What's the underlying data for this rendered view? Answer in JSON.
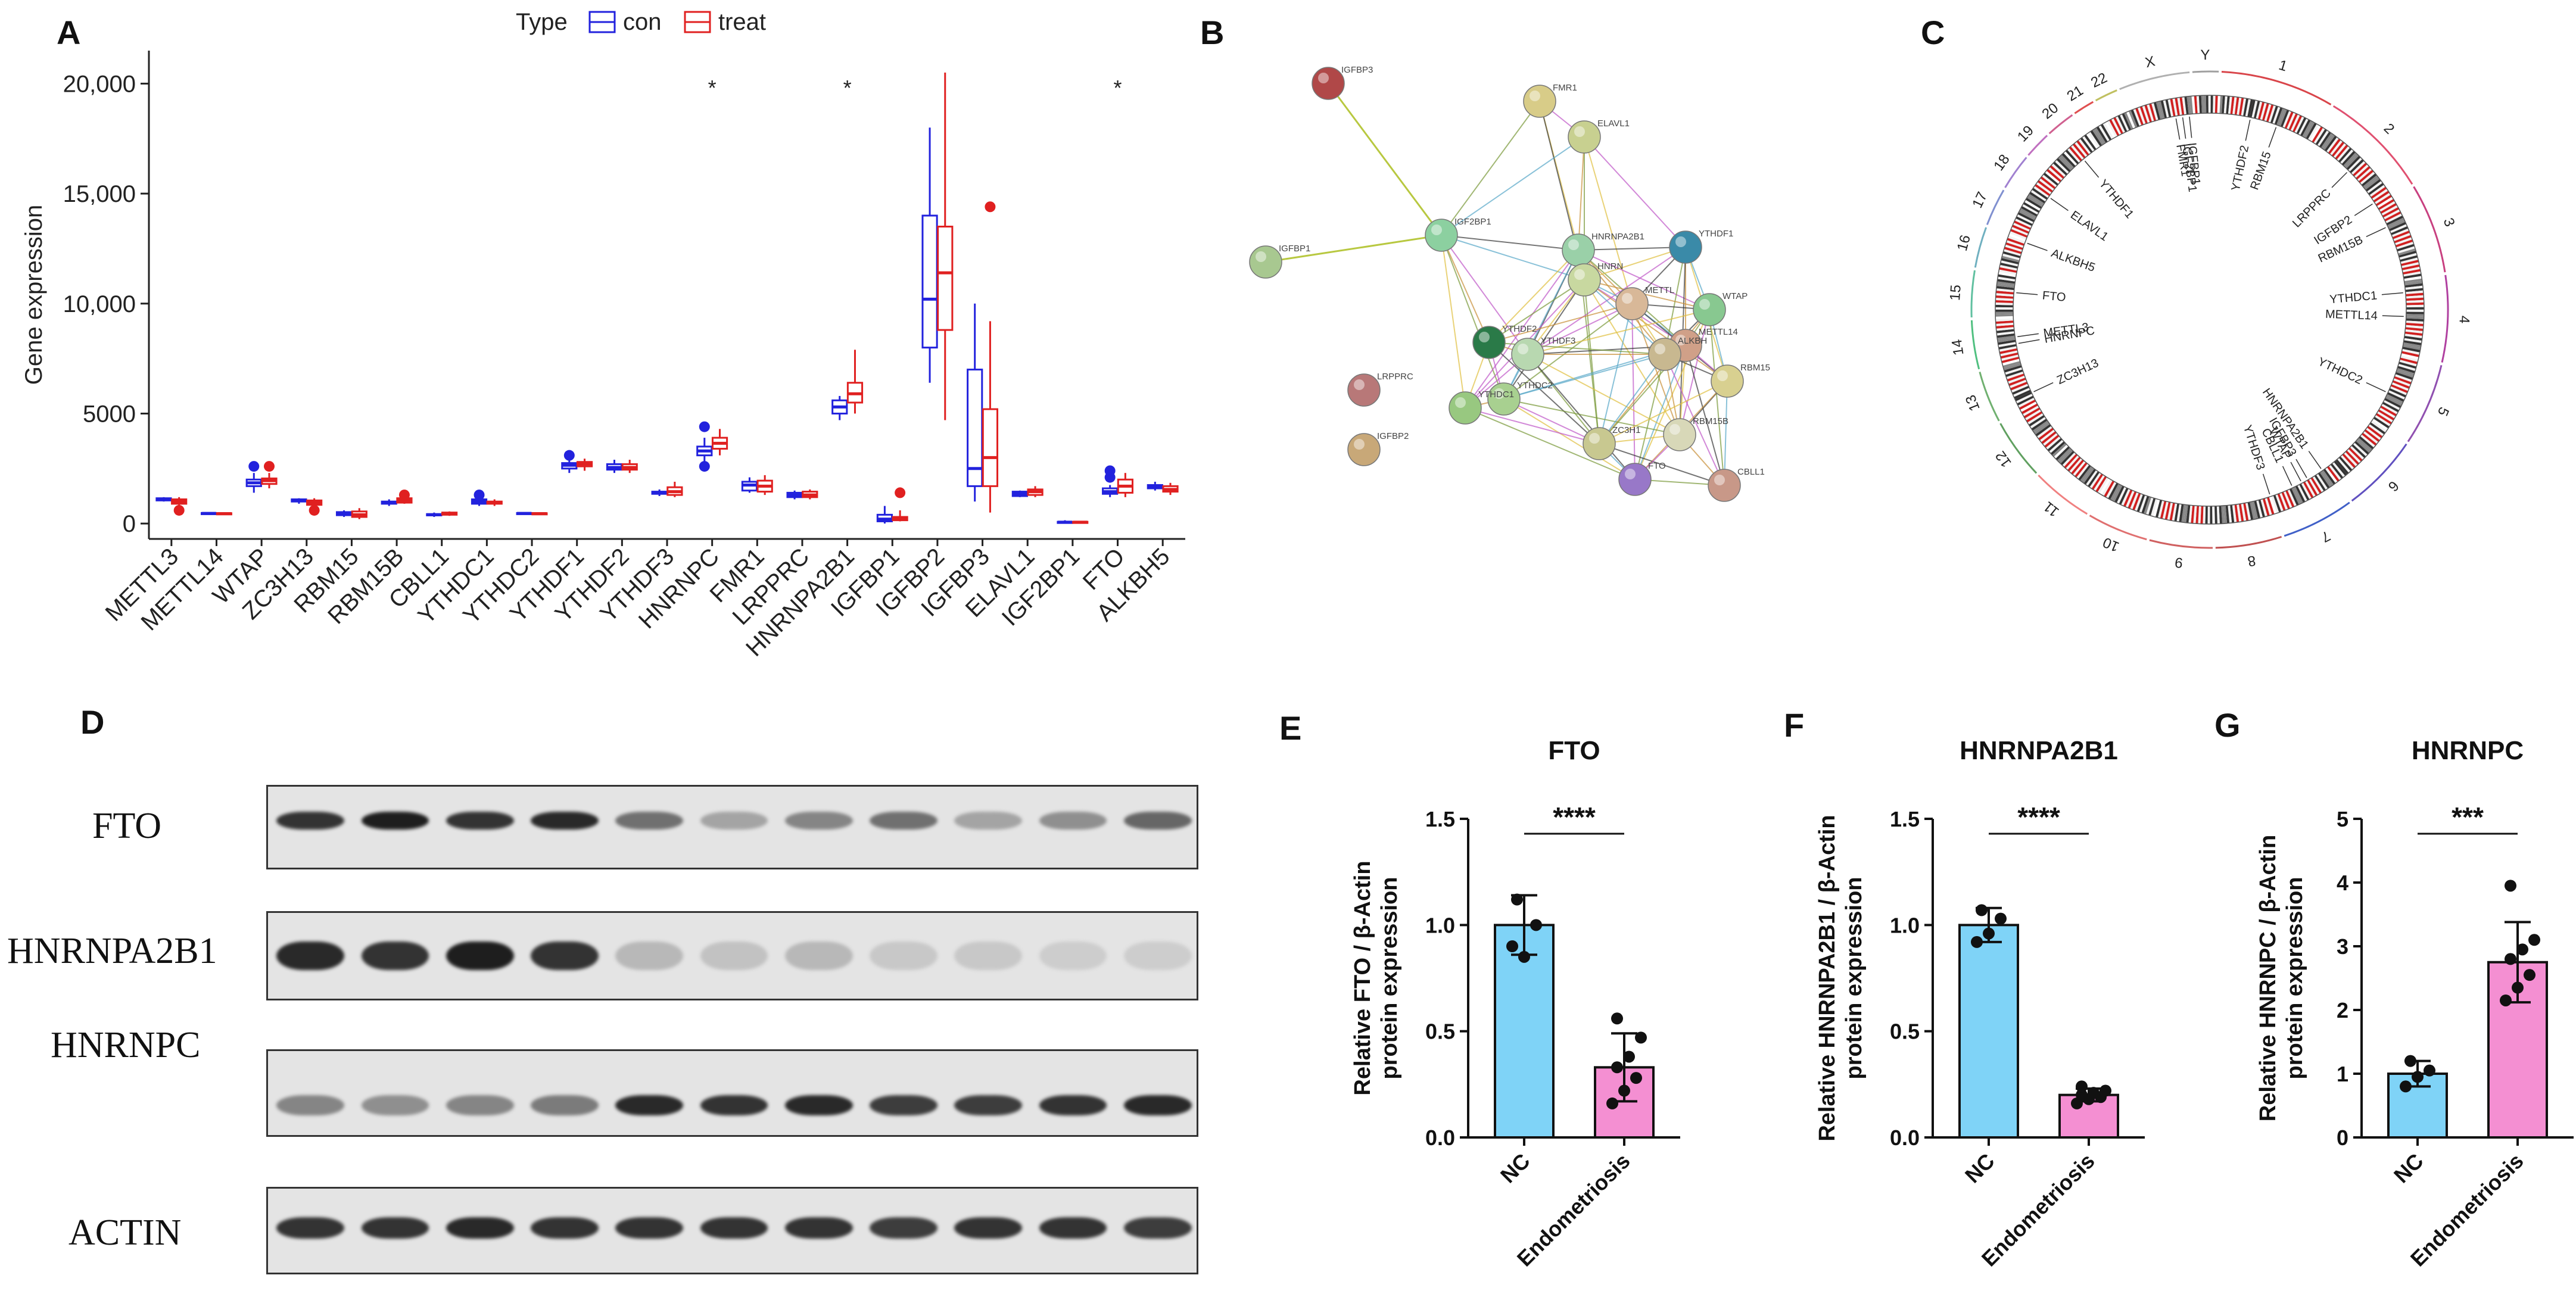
{
  "panel_labels": {
    "a": "A",
    "b": "B",
    "c": "C",
    "d": "D",
    "e": "E",
    "f": "F",
    "g": "G"
  },
  "colors": {
    "con": "#2222dd",
    "treat": "#e02020",
    "nc_bar": "#7fd3f7",
    "endo_bar": "#f48fd2"
  },
  "chart_data": [
    {
      "id": "A",
      "type": "boxplot",
      "legend": {
        "title": "Type",
        "entries": [
          "con",
          "treat"
        ],
        "placement": "top"
      },
      "ylabel": "Gene expression",
      "xlabel": "",
      "ylim": [
        -700,
        21500
      ],
      "yticks": [
        0,
        5000,
        10000,
        15000,
        20000
      ],
      "ytick_labels": [
        "0",
        "5000",
        "10,000",
        "15,000",
        "20,000"
      ],
      "categories": [
        "METTL3",
        "METTL14",
        "WTAP",
        "ZC3H13",
        "RBM15",
        "RBM15B",
        "CBLL1",
        "YTHDC1",
        "YTHDC2",
        "YTHDF1",
        "YTHDF2",
        "YTHDF3",
        "HNRNPC",
        "FMR1",
        "LRPPRC",
        "HNRNPA2B1",
        "IGFBP1",
        "IGFBP2",
        "IGFBP3",
        "ELAVL1",
        "IGF2BP1",
        "FTO",
        "ALKBH5"
      ],
      "significance": [
        {
          "category": "HNRNPC",
          "label": "*"
        },
        {
          "category": "HNRNPA2B1",
          "label": "*"
        },
        {
          "category": "FTO",
          "label": "*"
        }
      ],
      "series": [
        {
          "name": "con",
          "boxes": [
            [
              1000,
              1050,
              1100,
              1150,
              1200
            ],
            [
              420,
              440,
              460,
              480,
              500
            ],
            [
              1400,
              1700,
              1850,
              2000,
              2300
            ],
            [
              900,
              1000,
              1050,
              1100,
              1150
            ],
            [
              300,
              380,
              450,
              520,
              600
            ],
            [
              800,
              900,
              950,
              1000,
              1100
            ],
            [
              300,
              370,
              400,
              430,
              500
            ],
            [
              800,
              900,
              1000,
              1100,
              1250
            ],
            [
              420,
              440,
              460,
              480,
              500
            ],
            [
              2300,
              2500,
              2650,
              2750,
              2900
            ],
            [
              2300,
              2450,
              2550,
              2700,
              2900
            ],
            [
              1250,
              1350,
              1400,
              1450,
              1550
            ],
            [
              2800,
              3100,
              3300,
              3500,
              3900
            ],
            [
              1400,
              1500,
              1750,
              1900,
              2100
            ],
            [
              1100,
              1200,
              1300,
              1400,
              1500
            ],
            [
              4700,
              5000,
              5300,
              5600,
              5800
            ],
            [
              0,
              100,
              200,
              400,
              800
            ],
            [
              6400,
              8000,
              10200,
              14000,
              18000
            ],
            [
              1000,
              1700,
              2500,
              7000,
              10000
            ],
            [
              1200,
              1250,
              1350,
              1450,
              1500
            ],
            [
              0,
              40,
              60,
              80,
              150
            ],
            [
              1200,
              1350,
              1450,
              1600,
              1750
            ],
            [
              1500,
              1600,
              1650,
              1750,
              1900
            ]
          ]
        },
        {
          "name": "treat",
          "boxes": [
            [
              700,
              900,
              1000,
              1100,
              1200
            ],
            [
              400,
              430,
              450,
              470,
              500
            ],
            [
              1600,
              1800,
              1950,
              2050,
              2300
            ],
            [
              700,
              850,
              950,
              1050,
              1150
            ],
            [
              200,
              300,
              400,
              550,
              700
            ],
            [
              900,
              950,
              1050,
              1150,
              1300
            ],
            [
              350,
              400,
              450,
              500,
              550
            ],
            [
              800,
              900,
              950,
              1000,
              1100
            ],
            [
              400,
              430,
              450,
              470,
              500
            ],
            [
              2400,
              2600,
              2700,
              2800,
              2950
            ],
            [
              2300,
              2450,
              2550,
              2700,
              2900
            ],
            [
              1200,
              1300,
              1450,
              1650,
              1900
            ],
            [
              3100,
              3400,
              3650,
              3900,
              4300
            ],
            [
              1300,
              1450,
              1700,
              1950,
              2200
            ],
            [
              1100,
              1200,
              1300,
              1450,
              1550
            ],
            [
              5000,
              5500,
              5900,
              6400,
              7900
            ],
            [
              100,
              150,
              200,
              300,
              600
            ],
            [
              4700,
              8800,
              11400,
              13500,
              20500
            ],
            [
              500,
              1700,
              3000,
              5200,
              9200
            ],
            [
              1200,
              1300,
              1450,
              1550,
              1700
            ],
            [
              0,
              30,
              60,
              80,
              120
            ],
            [
              1200,
              1400,
              1700,
              2000,
              2300
            ],
            [
              1300,
              1450,
              1550,
              1700,
              1850
            ]
          ]
        }
      ],
      "outliers": [
        {
          "series": "con",
          "category": "WTAP",
          "value": 2600
        },
        {
          "series": "treat",
          "category": "WTAP",
          "value": 2600
        },
        {
          "series": "treat",
          "category": "METTL3",
          "value": 600
        },
        {
          "series": "treat",
          "category": "ZC3H13",
          "value": 600
        },
        {
          "series": "con",
          "category": "YTHDC1",
          "value": 1300
        },
        {
          "series": "treat",
          "category": "RBM15B",
          "value": 1300
        },
        {
          "series": "con",
          "category": "YTHDF1",
          "value": 3100
        },
        {
          "series": "con",
          "category": "HNRNPC",
          "value": 4400
        },
        {
          "series": "con",
          "category": "HNRNPC",
          "value": 2600
        },
        {
          "series": "treat",
          "category": "IGFBP1",
          "value": 1400
        },
        {
          "series": "treat",
          "category": "IGFBP3",
          "value": 14400
        },
        {
          "series": "con",
          "category": "FTO",
          "value": 2400
        },
        {
          "series": "con",
          "category": "FTO",
          "value": 2100
        }
      ]
    },
    {
      "id": "E",
      "type": "bar",
      "title": "FTO",
      "categories": [
        "NC",
        "Endometriosis"
      ],
      "values": [
        1.0,
        0.33
      ],
      "errors": [
        0.14,
        0.16
      ],
      "points": [
        [
          0.9,
          0.85,
          1.0,
          1.12
        ],
        [
          0.16,
          0.22,
          0.28,
          0.33,
          0.38,
          0.47,
          0.56
        ]
      ],
      "ylabel": [
        "Relative FTO / β-Actin",
        "protein expression"
      ],
      "ylim": [
        0,
        1.5
      ],
      "yticks": [
        0.0,
        0.5,
        1.0,
        1.5
      ],
      "ytick_labels": [
        "0.0",
        "0.5",
        "1.0",
        "1.5"
      ],
      "significance": "****"
    },
    {
      "id": "F",
      "type": "bar",
      "title": "HNRNPA2B1",
      "categories": [
        "NC",
        "Endometriosis"
      ],
      "values": [
        1.0,
        0.2
      ],
      "errors": [
        0.08,
        0.03
      ],
      "points": [
        [
          0.92,
          0.96,
          1.03,
          1.07
        ],
        [
          0.16,
          0.18,
          0.19,
          0.2,
          0.21,
          0.22,
          0.24
        ]
      ],
      "ylabel": [
        "Relative  HNRNPA2B1 / β-Actin",
        "protein expression"
      ],
      "ylim": [
        0,
        1.5
      ],
      "yticks": [
        0.0,
        0.5,
        1.0,
        1.5
      ],
      "ytick_labels": [
        "0.0",
        "0.5",
        "1.0",
        "1.5"
      ],
      "significance": "****"
    },
    {
      "id": "G",
      "type": "bar",
      "title": "HNRNPC",
      "categories": [
        "NC",
        "Endometriosis"
      ],
      "values": [
        1.0,
        2.75
      ],
      "errors": [
        0.2,
        0.63
      ],
      "points": [
        [
          0.8,
          0.95,
          1.05,
          1.2
        ],
        [
          2.15,
          2.35,
          2.55,
          2.8,
          2.95,
          3.1,
          3.95
        ]
      ],
      "ylabel": [
        "Relative HNRNPC / β-Actin",
        "protein expression"
      ],
      "ylim": [
        0,
        5
      ],
      "yticks": [
        0,
        1,
        2,
        3,
        4,
        5
      ],
      "ytick_labels": [
        "0",
        "1",
        "2",
        "3",
        "4",
        "5"
      ],
      "significance": "***"
    }
  ],
  "ppi": {
    "nodes": [
      "IGFBP3",
      "FMR1",
      "ELAVL1",
      "IGF2BP1",
      "IGFBP1",
      "HNRNPA2B1",
      "YTHDF1",
      "HNRNPC",
      "METTL3",
      "WTAP",
      "METTL14",
      "YTHDF2",
      "YTHDF3",
      "YTHDC2",
      "ALKBH5",
      "RBM15",
      "YTHDC1",
      "ZC3H13",
      "RBM15B",
      "CBLL1",
      "FTO",
      "LRPPRC",
      "IGFBP2"
    ],
    "label_texts": {
      "IGFBP3": "IGFBP3",
      "FMR1": "FMR1",
      "ELAVL1": "ELAVL1",
      "IGF2BP1": "IGF2BP1",
      "IGFBP1": "IGFBP1",
      "HNRNPA2B1": "HNRNPA2B1",
      "YTHDF1": "YTHDF1",
      "HNRNPC": "HNRN",
      "METTL3": "METTL",
      "WTAP": "WTAP",
      "METTL14": "METTL14",
      "YTHDF2": "YTHDF2",
      "YTHDF3": "YTHDF3",
      "YTHDC2": "YTHDC2",
      "ALKBH5": "ALKBH",
      "RBM15": "RBM15",
      "YTHDC1": "YTHDC1",
      "ZC3H13": "ZC3H1",
      "RBM15B": "RBM15B",
      "CBLL1": "CBLL1",
      "FTO": "FTO",
      "LRPPRC": "LRPPRC",
      "IGFBP2": "IGFBP2"
    }
  },
  "circos": {
    "chromosomes": [
      "1",
      "2",
      "3",
      "4",
      "5",
      "6",
      "7",
      "8",
      "9",
      "10",
      "11",
      "12",
      "13",
      "14",
      "15",
      "16",
      "17",
      "18",
      "19",
      "20",
      "21",
      "22",
      "X",
      "Y"
    ],
    "gene_labels": [
      "YTHDF2",
      "RBM15",
      "LRPPRC",
      "IGFBP2",
      "RBM15B",
      "YTHDC1",
      "METTL14",
      "YTHDC2",
      "HNRNPA2B1",
      "IGFBP3",
      "WTAP",
      "CBLL1",
      "YTHDF3",
      "ZC3H13",
      "HNRNPC",
      "METTL3",
      "FTO",
      "ALKBH5",
      "ELAVL1",
      "YTHDF1",
      "FMR1",
      "IGF2BP1",
      "IGFBP1"
    ]
  },
  "western_blot": {
    "rows": [
      "FTO",
      "HNRNPA2B1",
      "HNRNPC",
      "ACTIN"
    ]
  }
}
